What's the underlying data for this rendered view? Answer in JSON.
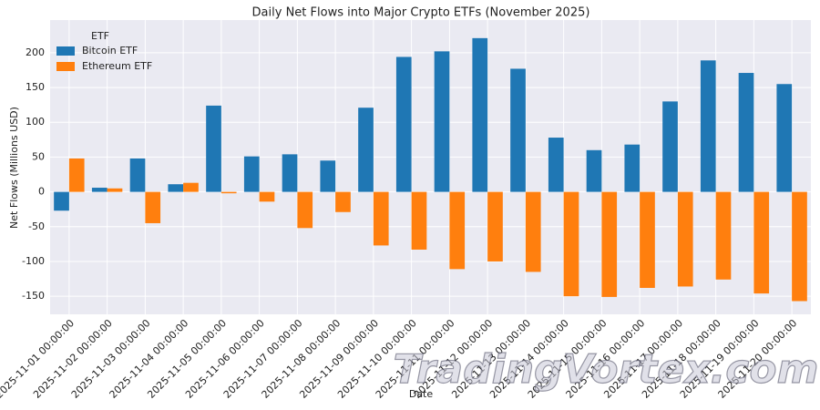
{
  "chart_data": {
    "type": "bar",
    "title": "Daily Net Flows into Major Crypto ETFs (November 2025)",
    "x_label": "Date",
    "y_label": "Net Flows (Millions USD)",
    "legend_title": "ETF",
    "legend_position": "upper left",
    "grid": true,
    "watermark": "TradingVortex.com",
    "categories": [
      "2025-11-01 00:00:00",
      "2025-11-02 00:00:00",
      "2025-11-03 00:00:00",
      "2025-11-04 00:00:00",
      "2025-11-05 00:00:00",
      "2025-11-06 00:00:00",
      "2025-11-07 00:00:00",
      "2025-11-08 00:00:00",
      "2025-11-09 00:00:00",
      "2025-11-10 00:00:00",
      "2025-11-11 00:00:00",
      "2025-11-12 00:00:00",
      "2025-11-13 00:00:00",
      "2025-11-14 00:00:00",
      "2025-11-15 00:00:00",
      "2025-11-16 00:00:00",
      "2025-11-17 00:00:00",
      "2025-11-18 00:00:00",
      "2025-11-19 00:00:00",
      "2025-11-20 00:00:00"
    ],
    "series": [
      {
        "name": "Bitcoin ETF",
        "color": "#1f77b4",
        "values": [
          -27,
          6,
          48,
          11,
          124,
          51,
          54,
          45,
          121,
          194,
          202,
          221,
          177,
          78,
          60,
          68,
          130,
          189,
          171,
          155
        ]
      },
      {
        "name": "Ethereum ETF",
        "color": "#ff7f0e",
        "values": [
          48,
          5,
          -45,
          13,
          -2,
          -14,
          -52,
          -29,
          -77,
          -83,
          -111,
          -100,
          -115,
          -150,
          -151,
          -138,
          -136,
          -126,
          -146,
          -157
        ]
      }
    ],
    "ylim": [
      -176,
      247
    ],
    "yticks": [
      -150,
      -100,
      -50,
      0,
      50,
      100,
      150,
      200
    ]
  }
}
